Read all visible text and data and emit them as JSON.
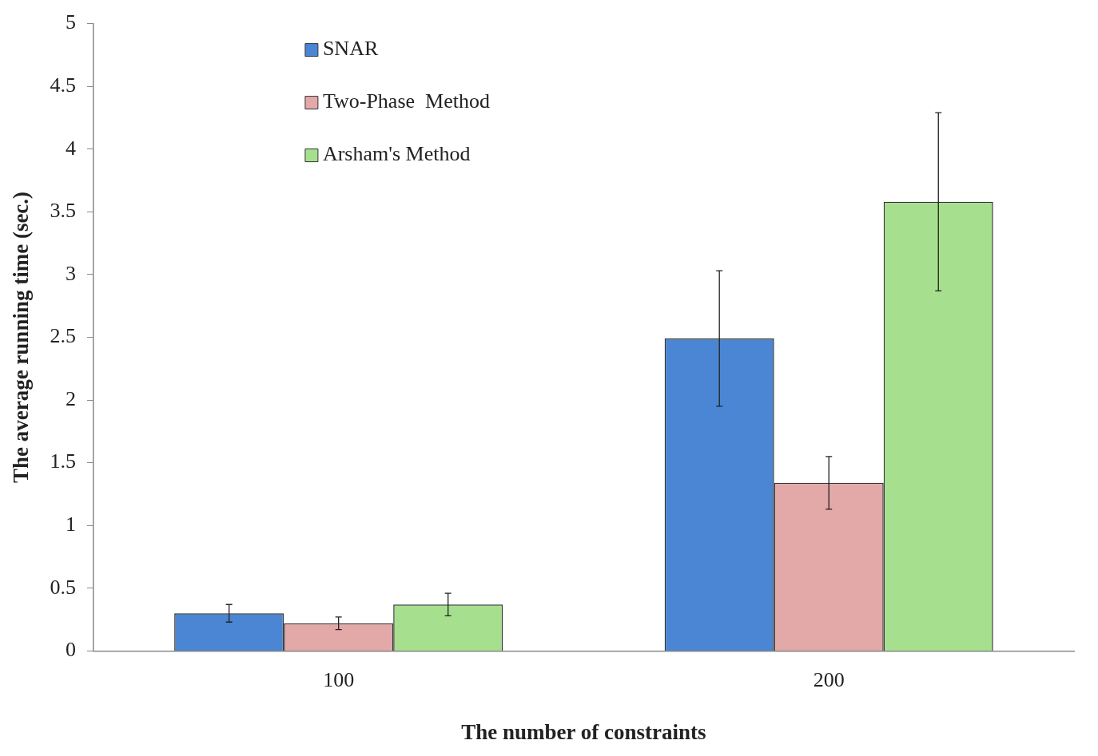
{
  "chart_data": {
    "type": "bar",
    "xlabel": "The number of constraints",
    "ylabel": "The average running time (sec.)",
    "categories": [
      "100",
      "200"
    ],
    "series": [
      {
        "name": "SNAR",
        "color": "#4a86d4",
        "values": [
          0.3,
          2.49
        ],
        "errors": [
          0.07,
          0.54
        ]
      },
      {
        "name": "Two-Phase  Method",
        "color": "#e3a8a8",
        "values": [
          0.22,
          1.34
        ],
        "errors": [
          0.05,
          0.21
        ]
      },
      {
        "name": "Arsham's Method",
        "color": "#a6e08e",
        "values": [
          0.37,
          3.58
        ],
        "errors": [
          0.09,
          0.71
        ]
      }
    ],
    "ylim": [
      0,
      5
    ],
    "yticks": [
      0,
      0.5,
      1,
      1.5,
      2,
      2.5,
      3,
      3.5,
      4,
      4.5,
      5
    ],
    "grid": false,
    "legend": "top left"
  }
}
